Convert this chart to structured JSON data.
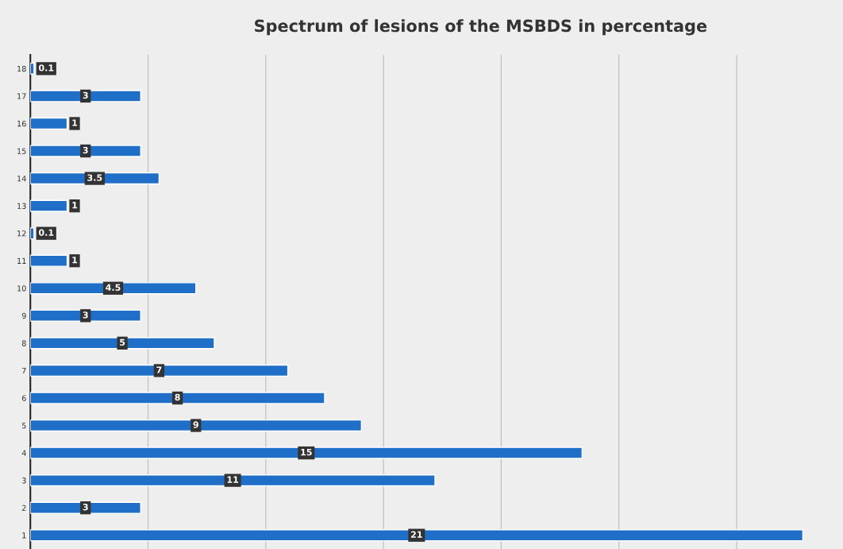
{
  "chart_data": {
    "type": "bar",
    "orientation": "horizontal",
    "title": "Spectrum of lesions of the MSBDS in percentage",
    "categories": [
      "18",
      "17",
      "16",
      "15",
      "14",
      "13",
      "12",
      "11",
      "10",
      "9",
      "8",
      "7",
      "6",
      "5",
      "4",
      "3",
      "2",
      "1"
    ],
    "values": [
      0.1,
      3,
      1,
      3,
      3.5,
      1,
      0.1,
      1,
      4.5,
      3,
      5,
      7,
      8,
      9,
      15,
      11,
      3,
      21
    ],
    "color": "#1f6fc9",
    "data_labels": true,
    "xlim": [
      0,
      22
    ],
    "xticks": [
      {
        "value": 3.2,
        "label": null
      },
      {
        "value": 6.4,
        "label": null
      },
      {
        "value": 9.6,
        "label": null
      },
      {
        "value": 12.8,
        "label": null
      },
      {
        "value": 16,
        "label": null
      },
      {
        "value": 19.2,
        "label": null
      }
    ],
    "grid": "x",
    "tick_labels": "y"
  }
}
